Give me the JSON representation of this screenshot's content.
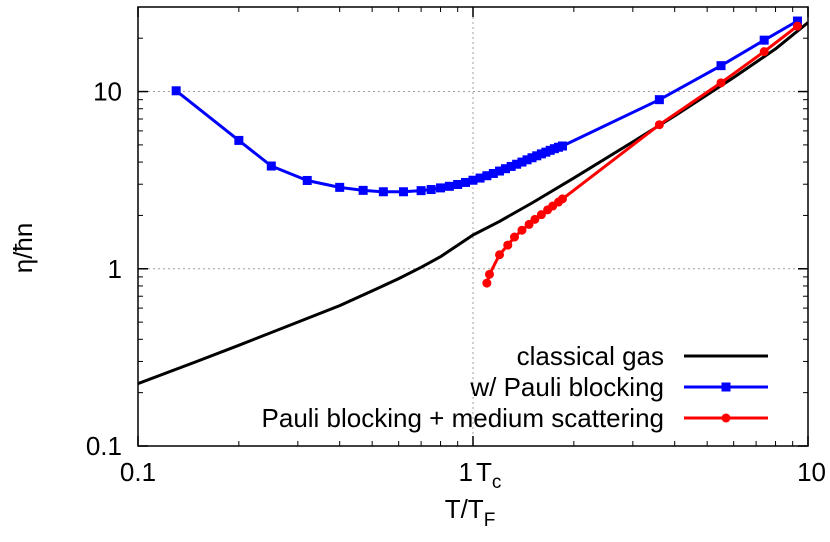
{
  "chart_data": {
    "type": "line",
    "xlabel": "T/T",
    "xlabel_sub": "F",
    "ylabel": "η/ħn",
    "x_scale": "log",
    "y_scale": "log",
    "xlim": [
      0.1,
      10
    ],
    "ylim": [
      0.1,
      30
    ],
    "x_ticks": [
      {
        "value": 0.1,
        "label": "0.1"
      },
      {
        "value": 1,
        "label": "1"
      },
      {
        "value": 10,
        "label": "10"
      }
    ],
    "y_ticks": [
      {
        "value": 0.1,
        "label": "0.1"
      },
      {
        "value": 1,
        "label": "1"
      },
      {
        "value": 10,
        "label": "10"
      }
    ],
    "grid": true,
    "annotation": {
      "text": "T",
      "sub": "c",
      "x": 1.0
    },
    "legend_position": "bottom-right",
    "series": [
      {
        "name": "classical gas",
        "color": "#000000",
        "marker": "none",
        "x": [
          0.1,
          0.15,
          0.2,
          0.3,
          0.4,
          0.5,
          0.6,
          0.7,
          0.8,
          1.0,
          1.2,
          1.5,
          2,
          3,
          4,
          5,
          6,
          8,
          10
        ],
        "y": [
          0.225,
          0.3,
          0.37,
          0.5,
          0.62,
          0.75,
          0.88,
          1.02,
          1.17,
          1.55,
          1.85,
          2.35,
          3.25,
          5.2,
          7.3,
          9.6,
          12.0,
          17.4,
          24.5
        ]
      },
      {
        "name": "w/ Pauli blocking",
        "color": "#0000ff",
        "marker": "square",
        "x": [
          0.13,
          0.2,
          0.25,
          0.32,
          0.4,
          0.47,
          0.54,
          0.62,
          0.7,
          0.75,
          0.8,
          0.85,
          0.9,
          0.95,
          1.0,
          1.05,
          1.1,
          1.15,
          1.2,
          1.25,
          1.3,
          1.35,
          1.4,
          1.45,
          1.5,
          1.55,
          1.6,
          1.65,
          1.7,
          1.75,
          1.8,
          1.85,
          3.6,
          5.5,
          7.4,
          9.3
        ],
        "y": [
          10.1,
          5.3,
          3.8,
          3.15,
          2.88,
          2.77,
          2.72,
          2.72,
          2.76,
          2.8,
          2.86,
          2.92,
          2.99,
          3.07,
          3.16,
          3.25,
          3.35,
          3.45,
          3.56,
          3.67,
          3.78,
          3.89,
          4.0,
          4.12,
          4.23,
          4.34,
          4.45,
          4.55,
          4.66,
          4.76,
          4.85,
          4.93,
          9.0,
          14.0,
          19.5,
          25.0
        ]
      },
      {
        "name": "Pauli blocking + medium scattering",
        "color": "#ff0000",
        "marker": "circle",
        "x": [
          1.1,
          1.12,
          1.2,
          1.27,
          1.33,
          1.4,
          1.47,
          1.53,
          1.6,
          1.67,
          1.73,
          1.8,
          1.85,
          3.6,
          5.5,
          7.4,
          9.3
        ],
        "y": [
          0.83,
          0.93,
          1.2,
          1.36,
          1.51,
          1.65,
          1.78,
          1.9,
          2.02,
          2.15,
          2.26,
          2.38,
          2.48,
          6.5,
          11.2,
          16.8,
          23.4
        ]
      }
    ]
  }
}
